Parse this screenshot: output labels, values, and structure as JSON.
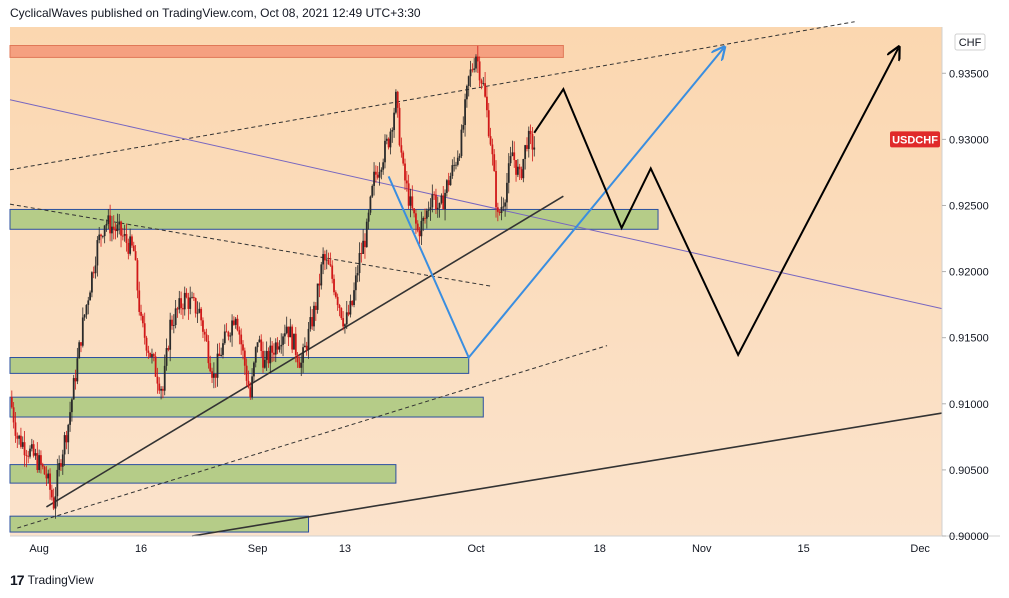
{
  "header": {
    "publish_line": "CyclicalWaves published on TradingView.com, Oct 08, 2021 12:49 UTC+3:30"
  },
  "footer": {
    "logo_mark": "17",
    "brand": "TradingView"
  },
  "colors": {
    "background_upper": "#fbd7b0",
    "background_lower": "#fbe3cc",
    "zone_green": "#b5cc88",
    "zone_red": "#f5a080",
    "zone_border": "#2b4fa0",
    "candle_red": "#d01818",
    "candle_dark": "#2a2a2a",
    "projection_blue": "#3a8ee0",
    "projection_black": "#000000",
    "resistance_purple": "#7766c0",
    "badge_red": "#e02a2a"
  },
  "chart_data": {
    "type": "candlestick",
    "symbol": "USDCHF",
    "currency": "CHF",
    "ylim": [
      0.9,
      0.9385
    ],
    "y_ticks": [
      "0.93500",
      "0.93000",
      "0.92500",
      "0.92000",
      "0.91500",
      "0.91000",
      "0.90500",
      "0.90000"
    ],
    "x_ticks": [
      "Aug",
      "16",
      "Sep",
      "13",
      "Oct",
      "18",
      "Nov",
      "15",
      "Dec"
    ],
    "x_tick_dates": [
      "2021-08-02",
      "2021-08-16",
      "2021-09-01",
      "2021-09-13",
      "2021-10-01",
      "2021-10-18",
      "2021-11-01",
      "2021-11-15",
      "2021-12-01"
    ],
    "x_range": [
      "2021-07-29",
      "2021-12-04"
    ],
    "price_path": [
      [
        "2021-07-29",
        0.9105
      ],
      [
        "2021-07-30",
        0.9075
      ],
      [
        "2021-08-02",
        0.9055
      ],
      [
        "2021-08-03",
        0.9045
      ],
      [
        "2021-08-04",
        0.9025
      ],
      [
        "2021-08-05",
        0.906
      ],
      [
        "2021-08-06",
        0.9085
      ],
      [
        "2021-08-08",
        0.916
      ],
      [
        "2021-08-10",
        0.922
      ],
      [
        "2021-08-11",
        0.9238
      ],
      [
        "2021-08-13",
        0.923
      ],
      [
        "2021-08-15",
        0.9215
      ],
      [
        "2021-08-16",
        0.916
      ],
      [
        "2021-08-18",
        0.9125
      ],
      [
        "2021-08-19",
        0.911
      ],
      [
        "2021-08-20",
        0.916
      ],
      [
        "2021-08-22",
        0.918
      ],
      [
        "2021-08-24",
        0.917
      ],
      [
        "2021-08-26",
        0.912
      ],
      [
        "2021-08-27",
        0.914
      ],
      [
        "2021-08-29",
        0.917
      ],
      [
        "2021-08-31",
        0.9105
      ],
      [
        "2021-09-01",
        0.915
      ],
      [
        "2021-09-02",
        0.913
      ],
      [
        "2021-09-05",
        0.916
      ],
      [
        "2021-09-07",
        0.913
      ],
      [
        "2021-09-09",
        0.9175
      ],
      [
        "2021-09-10",
        0.921
      ],
      [
        "2021-09-11",
        0.92
      ],
      [
        "2021-09-13",
        0.916
      ],
      [
        "2021-09-14",
        0.9175
      ],
      [
        "2021-09-15",
        0.921
      ],
      [
        "2021-09-16",
        0.923
      ],
      [
        "2021-09-17",
        0.927
      ],
      [
        "2021-09-19",
        0.93
      ],
      [
        "2021-09-20",
        0.933
      ],
      [
        "2021-09-21",
        0.9275
      ],
      [
        "2021-09-22",
        0.925
      ],
      [
        "2021-09-23",
        0.923
      ],
      [
        "2021-09-24",
        0.924
      ],
      [
        "2021-09-25",
        0.926
      ],
      [
        "2021-09-26",
        0.9245
      ],
      [
        "2021-09-27",
        0.9265
      ],
      [
        "2021-09-28",
        0.928
      ],
      [
        "2021-09-29",
        0.93
      ],
      [
        "2021-09-30",
        0.9345
      ],
      [
        "2021-10-01",
        0.9365
      ],
      [
        "2021-10-02",
        0.934
      ],
      [
        "2021-10-03",
        0.93
      ],
      [
        "2021-10-04",
        0.924
      ],
      [
        "2021-10-05",
        0.926
      ],
      [
        "2021-10-06",
        0.929
      ],
      [
        "2021-10-07",
        0.927
      ],
      [
        "2021-10-08",
        0.93
      ],
      [
        "2021-10-09",
        0.9295
      ]
    ],
    "zones": [
      {
        "color": "red",
        "x": [
          "2021-07-29",
          "2021-10-13"
        ],
        "y": [
          0.9362,
          0.9371
        ]
      },
      {
        "color": "green",
        "x": [
          "2021-07-29",
          "2021-10-26"
        ],
        "y": [
          0.9232,
          0.9247
        ]
      },
      {
        "color": "green",
        "x": [
          "2021-07-29",
          "2021-09-30"
        ],
        "y": [
          0.9123,
          0.9135
        ]
      },
      {
        "color": "green",
        "x": [
          "2021-07-29",
          "2021-10-02"
        ],
        "y": [
          0.909,
          0.9105
        ]
      },
      {
        "color": "green",
        "x": [
          "2021-07-29",
          "2021-09-20"
        ],
        "y": [
          0.904,
          0.9054
        ]
      },
      {
        "color": "green",
        "x": [
          "2021-07-29",
          "2021-09-08"
        ],
        "y": [
          0.9003,
          0.9015
        ]
      }
    ],
    "trendlines": [
      {
        "style": "dashed",
        "color": "dark",
        "from": [
          "2021-07-29",
          0.9277
        ],
        "to": [
          "2021-11-22",
          0.9389
        ]
      },
      {
        "style": "solid",
        "color": "purple",
        "from": [
          "2021-07-29",
          0.933
        ],
        "to": [
          "2021-12-04",
          0.9172
        ]
      },
      {
        "style": "dashed",
        "color": "dark",
        "from": [
          "2021-07-29",
          0.9251
        ],
        "to": [
          "2021-10-03",
          0.9189
        ]
      },
      {
        "style": "solid",
        "color": "dark",
        "from": [
          "2021-08-03",
          0.9022
        ],
        "to": [
          "2021-10-13",
          0.9257
        ]
      },
      {
        "style": "dashed",
        "color": "dark",
        "from": [
          "2021-07-30",
          0.9006
        ],
        "to": [
          "2021-10-19",
          0.9144
        ]
      },
      {
        "style": "solid",
        "color": "dark",
        "from": [
          "2021-08-23",
          0.9
        ],
        "to": [
          "2021-12-04",
          0.9093
        ]
      }
    ],
    "projections": [
      {
        "color": "blue",
        "points": [
          [
            "2021-09-19",
            0.9272
          ],
          [
            "2021-09-30",
            0.9135
          ],
          [
            "2021-11-04",
            0.9369
          ]
        ]
      },
      {
        "color": "black",
        "points": [
          [
            "2021-10-09",
            0.9305
          ],
          [
            "2021-10-13",
            0.9338
          ],
          [
            "2021-10-21",
            0.9233
          ],
          [
            "2021-10-25",
            0.9278
          ],
          [
            "2021-11-06",
            0.9137
          ],
          [
            "2021-11-28",
            0.9369
          ]
        ]
      }
    ],
    "current_price": {
      "label": "USDCHF",
      "value": 0.93
    }
  }
}
